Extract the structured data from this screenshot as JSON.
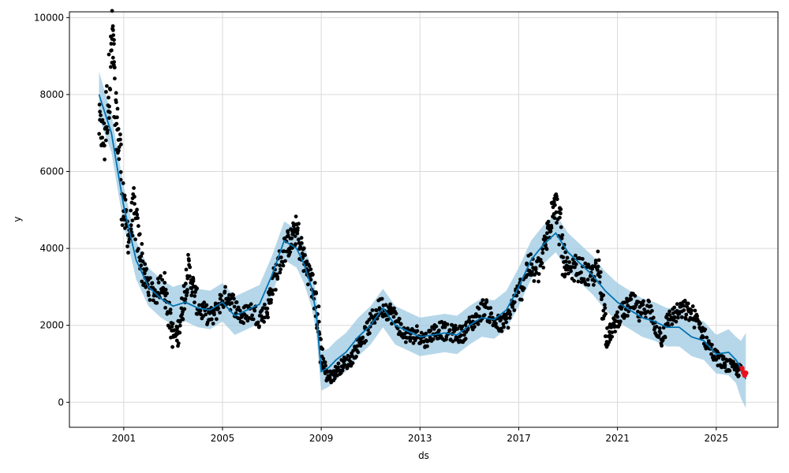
{
  "chart_data": {
    "type": "scatter",
    "xlabel": "ds",
    "ylabel": "y",
    "xlim": [
      1998.8,
      2027.5
    ],
    "ylim": [
      -650,
      10150
    ],
    "x_ticks": [
      "2001",
      "2005",
      "2009",
      "2013",
      "2017",
      "2021",
      "2025"
    ],
    "y_ticks": [
      "0",
      "2000",
      "4000",
      "6000",
      "8000",
      "10000"
    ],
    "grid": true,
    "colors": {
      "observed": "#000000",
      "forecast_line": "#0072B2",
      "uncertainty_band": "#9EC9E2",
      "latest_points": "#E8111B"
    },
    "forecast": {
      "x": [
        2000.0,
        2000.5,
        2001.0,
        2001.5,
        2002.0,
        2002.5,
        2003.0,
        2003.5,
        2004.0,
        2004.5,
        2005.0,
        2005.5,
        2006.0,
        2006.5,
        2007.0,
        2007.5,
        2008.0,
        2008.3,
        2008.6,
        2008.8,
        2009.0,
        2009.3,
        2009.6,
        2010.0,
        2010.5,
        2011.0,
        2011.5,
        2012.0,
        2012.5,
        2013.0,
        2013.5,
        2014.0,
        2014.5,
        2015.0,
        2015.5,
        2016.0,
        2016.5,
        2017.0,
        2017.5,
        2018.0,
        2018.5,
        2019.0,
        2019.5,
        2020.0,
        2020.5,
        2021.0,
        2021.5,
        2022.0,
        2022.5,
        2023.0,
        2023.5,
        2024.0,
        2024.5,
        2025.0,
        2025.5,
        2025.8,
        2026.0,
        2026.2
      ],
      "yhat": [
        8000,
        7000,
        5100,
        3700,
        3000,
        2700,
        2500,
        2600,
        2450,
        2400,
        2600,
        2250,
        2400,
        2550,
        3300,
        4200,
        4000,
        3600,
        3000,
        2300,
        800,
        900,
        1100,
        1300,
        1700,
        2000,
        2450,
        2000,
        1850,
        1700,
        1750,
        1800,
        1750,
        2000,
        2200,
        2150,
        2400,
        3000,
        3700,
        4100,
        4400,
        3900,
        3600,
        3300,
        2900,
        2600,
        2400,
        2200,
        2100,
        1950,
        1950,
        1700,
        1600,
        1250,
        1300,
        1100,
        900,
        600
      ],
      "yhat_lower": [
        7400,
        6500,
        4600,
        3200,
        2500,
        2200,
        2000,
        2100,
        1950,
        1900,
        2100,
        1750,
        1900,
        2050,
        2800,
        3700,
        3500,
        3100,
        2500,
        1800,
        300,
        400,
        600,
        800,
        1200,
        1500,
        1950,
        1500,
        1350,
        1200,
        1250,
        1300,
        1250,
        1500,
        1700,
        1650,
        1900,
        2500,
        3200,
        3600,
        3900,
        3400,
        3100,
        2800,
        2400,
        2100,
        1900,
        1700,
        1600,
        1450,
        1450,
        1200,
        1100,
        750,
        700,
        500,
        100,
        -150
      ],
      "yhat_upper": [
        8600,
        7500,
        5600,
        4200,
        3500,
        3200,
        3000,
        3100,
        2950,
        2900,
        3100,
        2750,
        2900,
        3050,
        3800,
        4700,
        4500,
        4100,
        3500,
        2800,
        1300,
        1400,
        1600,
        1800,
        2200,
        2500,
        2950,
        2500,
        2350,
        2200,
        2250,
        2300,
        2250,
        2500,
        2700,
        2650,
        2900,
        3500,
        4200,
        4600,
        4900,
        4400,
        4100,
        3800,
        3400,
        3100,
        2900,
        2700,
        2600,
        2450,
        2450,
        2200,
        2100,
        1750,
        1900,
        1700,
        1600,
        1800
      ]
    },
    "observed_path": [
      [
        2000.0,
        7200
      ],
      [
        2000.2,
        6800
      ],
      [
        2000.4,
        8200
      ],
      [
        2000.55,
        9500
      ],
      [
        2000.65,
        7500
      ],
      [
        2000.8,
        6800
      ],
      [
        2001.0,
        5000
      ],
      [
        2001.2,
        4300
      ],
      [
        2001.4,
        5000
      ],
      [
        2001.6,
        4200
      ],
      [
        2001.8,
        3400
      ],
      [
        2002.0,
        3000
      ],
      [
        2002.3,
        2800
      ],
      [
        2002.6,
        3200
      ],
      [
        2002.8,
        2400
      ],
      [
        2003.0,
        1700
      ],
      [
        2003.2,
        1800
      ],
      [
        2003.4,
        2600
      ],
      [
        2003.6,
        3500
      ],
      [
        2003.8,
        3000
      ],
      [
        2004.0,
        2500
      ],
      [
        2004.3,
        2300
      ],
      [
        2004.6,
        2200
      ],
      [
        2004.9,
        2600
      ],
      [
        2005.2,
        2800
      ],
      [
        2005.5,
        2500
      ],
      [
        2005.8,
        2200
      ],
      [
        2006.1,
        2400
      ],
      [
        2006.5,
        2200
      ],
      [
        2006.8,
        2400
      ],
      [
        2007.0,
        3000
      ],
      [
        2007.3,
        3600
      ],
      [
        2007.6,
        4100
      ],
      [
        2007.8,
        4200
      ],
      [
        2008.0,
        4500
      ],
      [
        2008.2,
        3900
      ],
      [
        2008.4,
        3500
      ],
      [
        2008.6,
        3200
      ],
      [
        2008.8,
        2500
      ],
      [
        2009.0,
        1300
      ],
      [
        2009.2,
        700
      ],
      [
        2009.4,
        650
      ],
      [
        2009.6,
        800
      ],
      [
        2009.9,
        1000
      ],
      [
        2010.2,
        1100
      ],
      [
        2010.5,
        1500
      ],
      [
        2010.8,
        1800
      ],
      [
        2011.1,
        2200
      ],
      [
        2011.4,
        2500
      ],
      [
        2011.7,
        2400
      ],
      [
        2012.0,
        2200
      ],
      [
        2012.3,
        1800
      ],
      [
        2012.6,
        1700
      ],
      [
        2012.9,
        1800
      ],
      [
        2013.2,
        1600
      ],
      [
        2013.5,
        1800
      ],
      [
        2013.8,
        1900
      ],
      [
        2014.1,
        1800
      ],
      [
        2014.4,
        1800
      ],
      [
        2014.7,
        1750
      ],
      [
        2015.0,
        2000
      ],
      [
        2015.3,
        2200
      ],
      [
        2015.6,
        2500
      ],
      [
        2015.9,
        2200
      ],
      [
        2016.2,
        2000
      ],
      [
        2016.5,
        2100
      ],
      [
        2016.8,
        2600
      ],
      [
        2017.1,
        3000
      ],
      [
        2017.4,
        3600
      ],
      [
        2017.7,
        3300
      ],
      [
        2018.0,
        3800
      ],
      [
        2018.2,
        4500
      ],
      [
        2018.4,
        5300
      ],
      [
        2018.6,
        4900
      ],
      [
        2018.8,
        3800
      ],
      [
        2019.0,
        3300
      ],
      [
        2019.3,
        3500
      ],
      [
        2019.6,
        3400
      ],
      [
        2019.9,
        3200
      ],
      [
        2020.2,
        3500
      ],
      [
        2020.4,
        2600
      ],
      [
        2020.6,
        1700
      ],
      [
        2020.8,
        1900
      ],
      [
        2021.0,
        2200
      ],
      [
        2021.3,
        2400
      ],
      [
        2021.6,
        2600
      ],
      [
        2021.9,
        2300
      ],
      [
        2022.2,
        2500
      ],
      [
        2022.5,
        2000
      ],
      [
        2022.8,
        1700
      ],
      [
        2023.1,
        2200
      ],
      [
        2023.4,
        2300
      ],
      [
        2023.7,
        2400
      ],
      [
        2024.0,
        2300
      ],
      [
        2024.3,
        2000
      ],
      [
        2024.6,
        1600
      ],
      [
        2024.9,
        1250
      ],
      [
        2025.2,
        1050
      ],
      [
        2025.5,
        950
      ],
      [
        2025.8,
        850
      ],
      [
        2026.0,
        800
      ]
    ],
    "latest_points": [
      [
        2026.05,
        880
      ],
      [
        2026.1,
        780
      ],
      [
        2026.15,
        700
      ],
      [
        2026.2,
        760
      ]
    ]
  }
}
